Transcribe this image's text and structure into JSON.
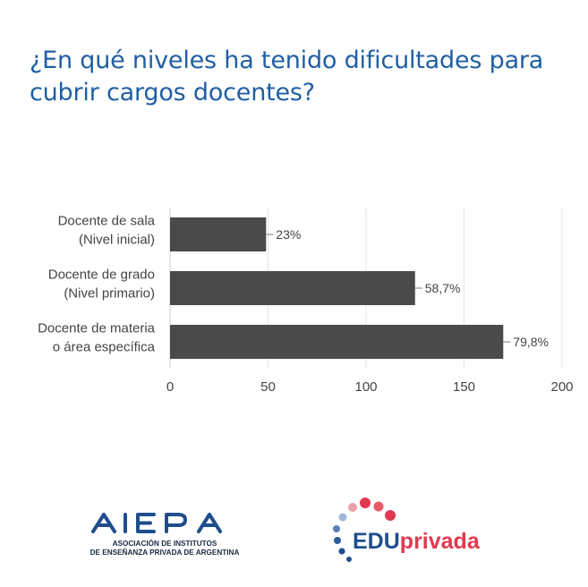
{
  "title": {
    "line1": "¿En qué niveles ha tenido dificultades para",
    "line2": "cubrir cargos docentes?"
  },
  "chart_data": {
    "type": "bar",
    "orientation": "horizontal",
    "categories": [
      [
        "Docente de sala",
        "(Nivel inicial)"
      ],
      [
        "Docente de grado",
        "(Nivel primario)"
      ],
      [
        "Docente de materia",
        "o área específica"
      ]
    ],
    "values": [
      49,
      125,
      170
    ],
    "data_labels": [
      "23%",
      "58,7%",
      "79,8%"
    ],
    "xlim": [
      0,
      200
    ],
    "xticks": [
      "0",
      "50",
      "100",
      "150",
      "200"
    ],
    "bar_color": "#4a4a4a",
    "grid": true
  },
  "logos": {
    "aiepa": {
      "wordmark": "AIEPA",
      "line1": "ASOCIACIÓN DE INSTITUTOS",
      "line2": "DE ENSEÑANZA PRIVADA DE ARGENTINA",
      "color": "#1f4e8c"
    },
    "eduprivada": {
      "part1": "EDU",
      "part2": "privada",
      "color1": "#1f4e8c",
      "color2": "#e0394f"
    }
  }
}
